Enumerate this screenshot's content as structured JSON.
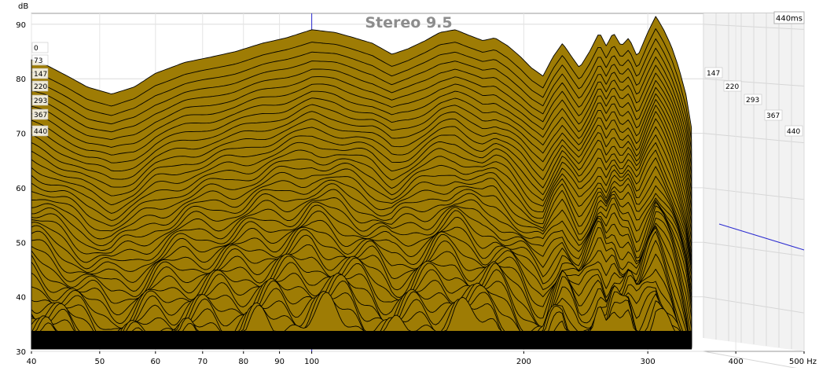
{
  "chart_data": {
    "type": "area",
    "title": "Stereo 9.5",
    "time_badge": "440ms",
    "ylabel": "dB",
    "xlabel": "Hz",
    "x_scale": "log",
    "xlim": [
      40,
      500
    ],
    "ylim": [
      30,
      92
    ],
    "x_ticks": [
      {
        "v": 40,
        "label": "40"
      },
      {
        "v": 50,
        "label": "50"
      },
      {
        "v": 60,
        "label": "60"
      },
      {
        "v": 70,
        "label": "70"
      },
      {
        "v": 80,
        "label": "80"
      },
      {
        "v": 90,
        "label": "90"
      },
      {
        "v": 100,
        "label": "100"
      },
      {
        "v": 200,
        "label": "200"
      },
      {
        "v": 300,
        "label": "300"
      },
      {
        "v": 400,
        "label": "400"
      },
      {
        "v": 500,
        "label": "500 Hz"
      }
    ],
    "y_ticks": [
      {
        "v": 90,
        "label": "90"
      },
      {
        "v": 80,
        "label": "80"
      },
      {
        "v": 70,
        "label": "70"
      },
      {
        "v": 60,
        "label": "60"
      },
      {
        "v": 50,
        "label": "50"
      },
      {
        "v": 40,
        "label": "40"
      },
      {
        "v": 30,
        "label": "30"
      }
    ],
    "time_labels_left": [
      "0",
      "73",
      "147",
      "220",
      "293",
      "367",
      "440"
    ],
    "time_labels_right": [
      "147",
      "220",
      "293",
      "367",
      "440"
    ],
    "fill_color": "#9e7c05",
    "line_color": "#000000",
    "grid": true,
    "front_curve": [
      [
        40,
        83.5
      ],
      [
        42,
        82.5
      ],
      [
        45,
        80.5
      ],
      [
        48,
        78.5
      ],
      [
        52,
        77.2
      ],
      [
        56,
        78.5
      ],
      [
        60,
        81.0
      ],
      [
        66,
        83.0
      ],
      [
        72,
        84.0
      ],
      [
        78,
        85.0
      ],
      [
        85,
        86.5
      ],
      [
        92,
        87.5
      ],
      [
        100,
        89.0
      ],
      [
        108,
        88.5
      ],
      [
        115,
        87.5
      ],
      [
        122,
        86.5
      ],
      [
        130,
        84.5
      ],
      [
        137,
        85.5
      ],
      [
        145,
        87.0
      ],
      [
        152,
        88.5
      ],
      [
        160,
        89.0
      ],
      [
        167,
        88.0
      ],
      [
        175,
        87.0
      ],
      [
        182,
        87.5
      ],
      [
        190,
        86.0
      ],
      [
        198,
        84.0
      ],
      [
        205,
        82.0
      ],
      [
        213,
        80.5
      ],
      [
        220,
        84.0
      ],
      [
        227,
        86.5
      ],
      [
        234,
        84.0
      ],
      [
        240,
        82.0
      ],
      [
        248,
        85.0
      ],
      [
        256,
        88.5
      ],
      [
        262,
        86.0
      ],
      [
        268,
        88.5
      ],
      [
        275,
        86.0
      ],
      [
        282,
        87.5
      ],
      [
        290,
        84.0
      ],
      [
        300,
        88.5
      ],
      [
        308,
        91.5
      ],
      [
        316,
        89.0
      ],
      [
        324,
        86.0
      ],
      [
        332,
        82.0
      ],
      [
        340,
        77.0
      ],
      [
        346,
        71.0
      ]
    ]
  }
}
